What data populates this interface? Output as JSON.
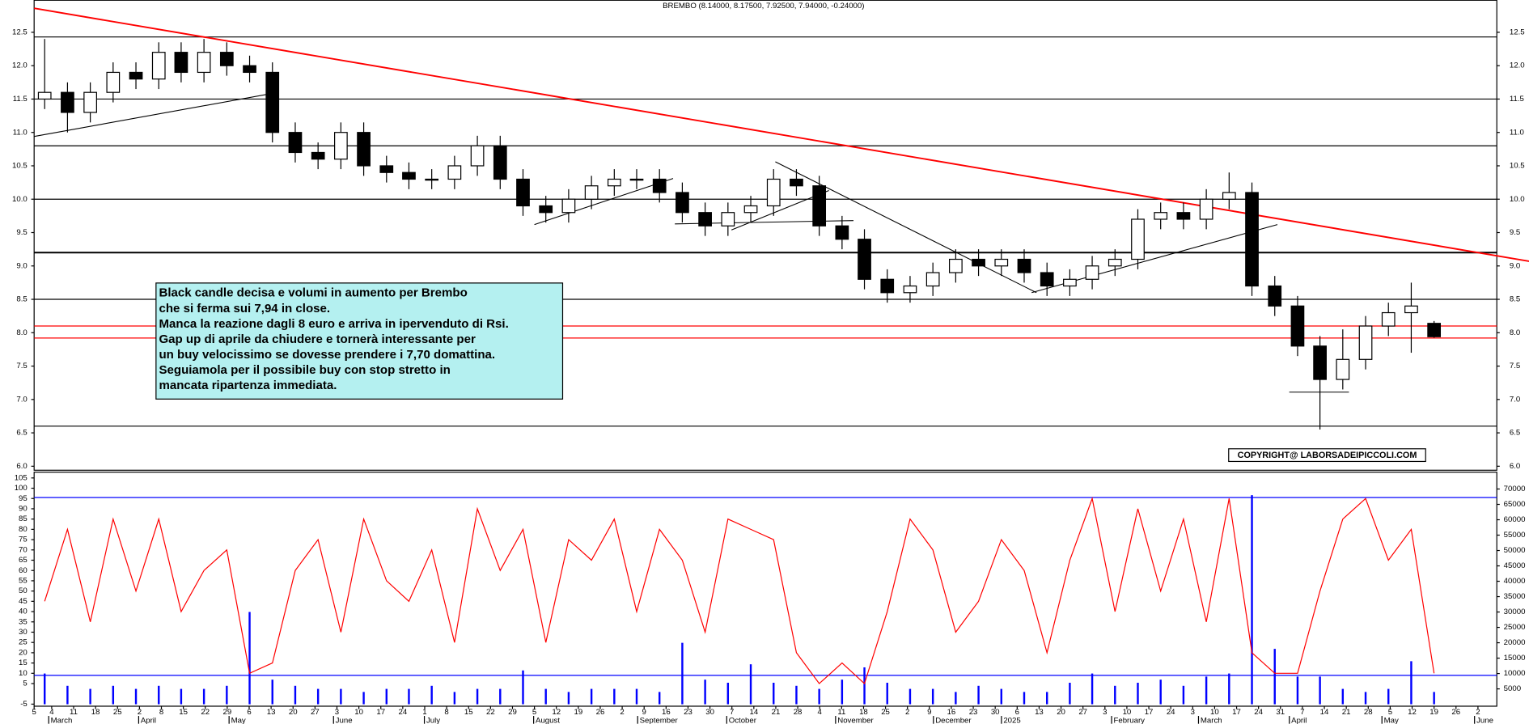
{
  "chart_data": {
    "type": "candlestick",
    "title": "BREMBO (8.14000, 8.17500, 7.92500, 7.94000, -0.24000)",
    "x": [
      2.4,
      7.6,
      12.8,
      18.0,
      23.2,
      28.4,
      33.5,
      38.7,
      43.9,
      49.1,
      54.3,
      59.5,
      64.7,
      69.9,
      75.1,
      80.3,
      85.4,
      90.6,
      95.8,
      101.0,
      106.2,
      111.4,
      116.6,
      121.8,
      127.0,
      132.2,
      137.3,
      142.5,
      147.7,
      152.9,
      158.1,
      163.3,
      168.5,
      173.7,
      178.9,
      184.1,
      189.2,
      194.4,
      199.6,
      204.8,
      210.0,
      215.2,
      220.4,
      225.6,
      230.8,
      236.0,
      241.1,
      246.3,
      251.5,
      256.7,
      261.9,
      267.1,
      272.3,
      277.5,
      282.7,
      287.9,
      293.0,
      298.2,
      303.4,
      308.6,
      313.8,
      319.0
    ],
    "open": [
      11.5,
      11.6,
      11.3,
      11.6,
      11.9,
      11.8,
      12.2,
      11.9,
      12.2,
      12.0,
      11.9,
      11.0,
      10.7,
      10.6,
      11.0,
      10.5,
      10.4,
      10.3,
      10.3,
      10.5,
      10.8,
      10.3,
      9.9,
      9.8,
      10.0,
      10.2,
      10.3,
      10.3,
      10.1,
      9.8,
      9.6,
      9.8,
      9.9,
      10.3,
      10.2,
      9.6,
      9.4,
      8.8,
      8.6,
      8.7,
      8.9,
      9.1,
      9.0,
      9.1,
      8.9,
      8.7,
      8.8,
      9.0,
      9.1,
      9.7,
      9.8,
      9.7,
      10.0,
      10.1,
      8.7,
      8.4,
      7.8,
      7.3,
      7.6,
      8.1,
      8.3,
      8.14
    ],
    "high": [
      12.4,
      11.75,
      11.75,
      12.05,
      12.05,
      12.35,
      12.35,
      12.4,
      12.35,
      12.15,
      12.05,
      11.15,
      10.85,
      11.15,
      11.15,
      10.65,
      10.55,
      10.45,
      10.65,
      10.95,
      10.95,
      10.45,
      10.05,
      10.15,
      10.35,
      10.45,
      10.45,
      10.45,
      10.25,
      9.95,
      9.95,
      10.05,
      10.45,
      10.45,
      10.35,
      9.75,
      9.55,
      8.95,
      8.85,
      9.05,
      9.25,
      9.25,
      9.25,
      9.25,
      9.05,
      8.95,
      9.15,
      9.25,
      9.85,
      9.95,
      9.95,
      10.15,
      10.4,
      10.25,
      8.85,
      8.55,
      7.95,
      8.05,
      8.25,
      8.45,
      8.75,
      8.175
    ],
    "low": [
      11.35,
      11.0,
      11.15,
      11.45,
      11.65,
      11.65,
      11.75,
      11.75,
      11.85,
      11.75,
      10.85,
      10.55,
      10.45,
      10.45,
      10.35,
      10.25,
      10.15,
      10.15,
      10.15,
      10.35,
      10.15,
      9.75,
      9.65,
      9.65,
      9.85,
      10.05,
      10.15,
      9.95,
      9.65,
      9.45,
      9.45,
      9.65,
      9.75,
      10.05,
      9.45,
      9.25,
      8.65,
      8.45,
      8.45,
      8.55,
      8.75,
      8.85,
      8.85,
      8.75,
      8.55,
      8.55,
      8.65,
      8.85,
      8.95,
      9.55,
      9.55,
      9.55,
      9.85,
      8.55,
      8.25,
      7.65,
      6.55,
      7.15,
      7.45,
      7.95,
      7.7,
      7.925
    ],
    "close": [
      11.6,
      11.3,
      11.6,
      11.9,
      11.8,
      12.2,
      11.9,
      12.2,
      12.0,
      11.9,
      11.0,
      10.7,
      10.6,
      11.0,
      10.5,
      10.4,
      10.3,
      10.3,
      10.5,
      10.8,
      10.3,
      9.9,
      9.8,
      10.0,
      10.2,
      10.3,
      10.3,
      10.1,
      9.8,
      9.6,
      9.8,
      9.9,
      10.3,
      10.2,
      9.6,
      9.4,
      8.8,
      8.6,
      8.7,
      8.9,
      9.1,
      9.0,
      9.1,
      8.9,
      8.7,
      8.8,
      9.0,
      9.1,
      9.7,
      9.8,
      9.7,
      10.0,
      10.1,
      8.7,
      8.4,
      7.8,
      7.3,
      7.6,
      8.1,
      8.3,
      8.4,
      7.94
    ],
    "up_color": "#ffffff",
    "down_color": "#000000",
    "xlim": [
      0,
      333.3
    ],
    "ylim": [
      5.94,
      12.98
    ],
    "yticks": [
      12.5,
      {
        "value": 12,
        "label": "12.0"
      },
      11.5,
      {
        "value": 11,
        "label": "11.0"
      },
      10.5,
      {
        "value": 10,
        "label": "10.0"
      },
      9.5,
      {
        "value": 9,
        "label": "9.0"
      },
      8.5,
      {
        "value": 8,
        "label": "8.0"
      },
      7.5,
      {
        "value": 7,
        "label": "7.0"
      },
      6.5,
      {
        "value": 6,
        "label": "6.0"
      }
    ],
    "xticks": [
      {
        "value": 0,
        "label": "5"
      },
      {
        "value": 4,
        "label": "4"
      },
      {
        "value": 9,
        "label": "11"
      },
      {
        "value": 14,
        "label": "18"
      },
      {
        "value": 19,
        "label": "25"
      },
      {
        "value": 24,
        "label": "2"
      },
      {
        "value": 29,
        "label": "8"
      },
      {
        "value": 34,
        "label": "15"
      },
      {
        "value": 39,
        "label": "22"
      },
      {
        "value": 44,
        "label": "29"
      },
      {
        "value": 49,
        "label": "6"
      },
      {
        "value": 54,
        "label": "13"
      },
      {
        "value": 59,
        "label": "20"
      },
      {
        "value": 64,
        "label": "27"
      },
      {
        "value": 69,
        "label": "3"
      },
      {
        "value": 74,
        "label": "10"
      },
      {
        "value": 79,
        "label": "17"
      },
      {
        "value": 84,
        "label": "24"
      },
      {
        "value": 89,
        "label": "1"
      },
      {
        "value": 94,
        "label": "8"
      },
      {
        "value": 99,
        "label": "15"
      },
      {
        "value": 104,
        "label": "22"
      },
      {
        "value": 109,
        "label": "29"
      },
      {
        "value": 114,
        "label": "5"
      },
      {
        "value": 119,
        "label": "12"
      },
      {
        "value": 124,
        "label": "19"
      },
      {
        "value": 129,
        "label": "26"
      },
      {
        "value": 134,
        "label": "2"
      },
      {
        "value": 139,
        "label": "9"
      },
      {
        "value": 144,
        "label": "16"
      },
      {
        "value": 149,
        "label": "23"
      },
      {
        "value": 154,
        "label": "30"
      },
      {
        "value": 159,
        "label": "7"
      },
      {
        "value": 164,
        "label": "14"
      },
      {
        "value": 169,
        "label": "21"
      },
      {
        "value": 174,
        "label": "28"
      },
      {
        "value": 179,
        "label": "4"
      },
      {
        "value": 184,
        "label": "11"
      },
      {
        "value": 189,
        "label": "18"
      },
      {
        "value": 194,
        "label": "25"
      },
      {
        "value": 199,
        "label": "2"
      },
      {
        "value": 204,
        "label": "9"
      },
      {
        "value": 209,
        "label": "16"
      },
      {
        "value": 214,
        "label": "23"
      },
      {
        "value": 219,
        "label": "30"
      },
      {
        "value": 224,
        "label": "6"
      },
      {
        "value": 229,
        "label": "13"
      },
      {
        "value": 234,
        "label": "20"
      },
      {
        "value": 239,
        "label": "27"
      },
      {
        "value": 244,
        "label": "3"
      },
      {
        "value": 249,
        "label": "10"
      },
      {
        "value": 254,
        "label": "17"
      },
      {
        "value": 259,
        "label": "24"
      },
      {
        "value": 264,
        "label": "3"
      },
      {
        "value": 269,
        "label": "10"
      },
      {
        "value": 274,
        "label": "17"
      },
      {
        "value": 279,
        "label": "24"
      },
      {
        "value": 284,
        "label": "31"
      },
      {
        "value": 289,
        "label": "7"
      },
      {
        "value": 294,
        "label": "14"
      },
      {
        "value": 299,
        "label": "21"
      },
      {
        "value": 304,
        "label": "28"
      },
      {
        "value": 309,
        "label": "5"
      },
      {
        "value": 314,
        "label": "12"
      },
      {
        "value": 319,
        "label": "19"
      },
      {
        "value": 324,
        "label": "26"
      },
      {
        "value": 329,
        "label": "2"
      }
    ],
    "month_ticks": [
      {
        "value": 5.1,
        "label": "March"
      },
      {
        "value": 25.6,
        "label": "April"
      },
      {
        "value": 46.2,
        "label": "May"
      },
      {
        "value": 70,
        "label": "June"
      },
      {
        "value": 90.7,
        "label": "July"
      },
      {
        "value": 115.6,
        "label": "August"
      },
      {
        "value": 139.3,
        "label": "September"
      },
      {
        "value": 159.6,
        "label": "October"
      },
      {
        "value": 184.4,
        "label": "November"
      },
      {
        "value": 206.7,
        "label": "December"
      },
      {
        "value": 222.2,
        "label": "2025"
      },
      {
        "value": 247.3,
        "label": "February"
      },
      {
        "value": 267.1,
        "label": "March"
      },
      {
        "value": 287.8,
        "label": "April"
      },
      {
        "value": 308.9,
        "label": "May"
      },
      {
        "value": 330,
        "label": "June"
      }
    ],
    "levels": [
      {
        "value": 12.43,
        "color": "#000000"
      },
      {
        "value": 11.5,
        "color": "#000000"
      },
      {
        "value": 10.8,
        "color": "#000000"
      },
      {
        "value": 10.0,
        "color": "#000000"
      },
      {
        "value": 9.2,
        "color": "#000000"
      },
      {
        "value": 8.5,
        "color": "#000000"
      },
      {
        "value": 6.6,
        "color": "#000000"
      },
      {
        "value": 8.1,
        "color": "#ff0000"
      },
      {
        "value": 7.92,
        "color": "#ff0000"
      }
    ],
    "trendlines": [
      {
        "x": [
          0,
          340.7
        ],
        "y": [
          12.86,
          9.07
        ],
        "color": "#ff0000"
      },
      {
        "x": [
          0,
          55.6
        ],
        "y": [
          10.94,
          11.6
        ],
        "color": "#000000"
      },
      {
        "x": [
          114.0,
          145.6
        ],
        "y": [
          9.62,
          10.31
        ],
        "color": "#000000"
      },
      {
        "x": [
          146.0,
          186.7
        ],
        "y": [
          9.63,
          9.68
        ],
        "color": "#000000"
      },
      {
        "x": [
          158.9,
          181.1
        ],
        "y": [
          9.54,
          10.13
        ],
        "color": "#000000"
      },
      {
        "x": [
          168.9,
          228.4
        ],
        "y": [
          10.56,
          8.6
        ],
        "color": "#000000"
      },
      {
        "x": [
          227.3,
          283.3
        ],
        "y": [
          8.6,
          9.62
        ],
        "color": "#000000"
      },
      {
        "x": [
          286.0,
          299.6
        ],
        "y": [
          7.11,
          7.11
        ],
        "color": "#000000"
      }
    ],
    "annotation": [
      "Black candle decisa e volumi in aumento per Brembo",
      "che si ferma sui 7,94 in close.",
      "Manca la reazione dagli 8 euro e arriva in ipervenduto di Rsi.",
      "Gap up di aprile da chiudere e tornerà interessante per",
      "un buy velocissimo se dovesse prendere i 7,70 domattina.",
      "Seguiamola per il possibile buy con stop stretto in",
      "mancata ripartenza immediata."
    ],
    "copyright": "COPYRIGHT@ LABORSADEIPICCOLI.COM",
    "rsi": {
      "color": "#ff0000",
      "values": [
        45,
        80,
        35,
        85,
        50,
        85,
        40,
        60,
        70,
        10,
        15,
        60,
        75,
        30,
        85,
        55,
        45,
        70,
        25,
        90,
        60,
        80,
        25,
        75,
        65,
        85,
        40,
        80,
        65,
        30,
        85,
        80,
        75,
        20,
        5,
        15,
        5,
        40,
        85,
        70,
        30,
        45,
        75,
        60,
        20,
        65,
        95,
        40,
        90,
        50,
        85,
        35,
        95,
        20,
        10,
        10,
        50,
        85,
        95,
        65,
        80,
        10
      ],
      "ylim": [
        -6,
        107.8
      ],
      "yticks": [
        105,
        100,
        95,
        90,
        85,
        80,
        75,
        70,
        65,
        60,
        55,
        50,
        45,
        40,
        35,
        30,
        25,
        20,
        15,
        10,
        5,
        -5
      ],
      "levels": [
        95.5,
        9
      ]
    },
    "volume": {
      "color": "#0000ff",
      "values": [
        10000,
        6000,
        5000,
        6000,
        5000,
        6000,
        5000,
        5000,
        6000,
        30000,
        8000,
        6000,
        5000,
        5000,
        4000,
        5000,
        5000,
        6000,
        4000,
        5000,
        5000,
        11000,
        5000,
        4000,
        5000,
        5000,
        5000,
        4000,
        20000,
        8000,
        7000,
        13000,
        7000,
        6000,
        5000,
        8000,
        12000,
        7000,
        5000,
        5000,
        4000,
        6000,
        5000,
        4000,
        4000,
        7000,
        10000,
        6000,
        7000,
        8000,
        6000,
        9000,
        10000,
        68000,
        18000,
        9000,
        9000,
        5000,
        4000,
        5000,
        14000,
        4000
      ],
      "ylim": [
        -630,
        75470
      ],
      "yticks": [
        70000,
        65000,
        60000,
        55000,
        50000,
        45000,
        40000,
        35000,
        30000,
        25000,
        20000,
        15000,
        10000,
        5000
      ]
    }
  }
}
